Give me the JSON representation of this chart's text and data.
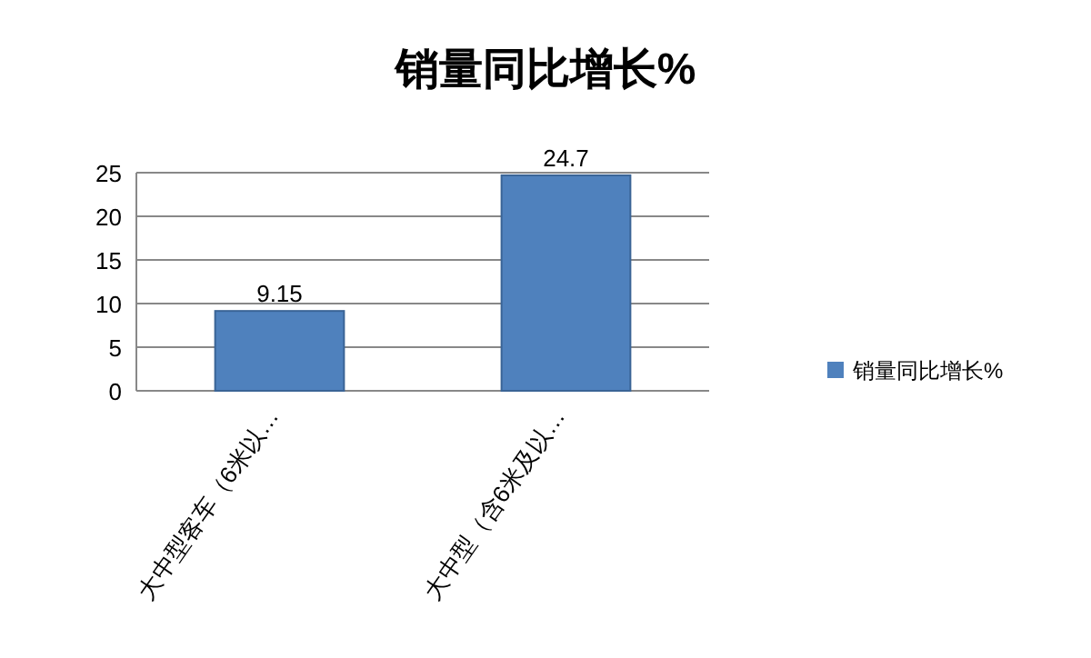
{
  "chart_data": {
    "type": "bar",
    "title": "销量同比增长%",
    "categories": [
      "大中型客车（6米以…",
      "大中型（含6米及以…"
    ],
    "series": [
      {
        "name": "销量同比增长%",
        "color": "#4f81bd",
        "values": [
          9.15,
          24.7
        ]
      }
    ],
    "ylim": [
      0,
      25
    ],
    "yticks": [
      0,
      5,
      10,
      15,
      20,
      25
    ],
    "grid": "y",
    "legend": "right",
    "data_labels": true
  }
}
